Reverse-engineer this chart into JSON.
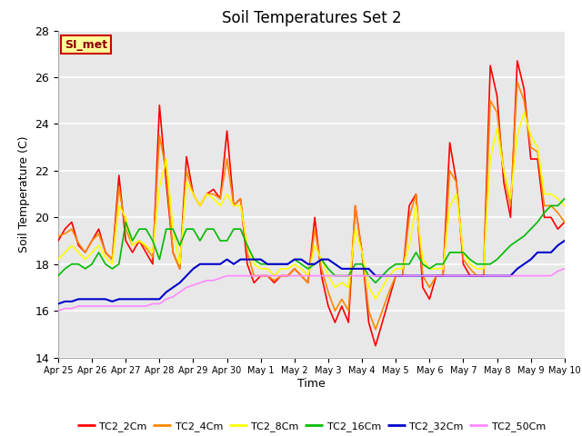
{
  "title": "Soil Temperatures Set 2",
  "xlabel": "Time",
  "ylabel": "Soil Temperature (C)",
  "ylim": [
    14,
    28
  ],
  "yticks": [
    14,
    16,
    18,
    20,
    22,
    24,
    26,
    28
  ],
  "annotation_text": "SI_met",
  "annotation_bg": "#ffff99",
  "annotation_border": "#cc0000",
  "legend_labels": [
    "TC2_2Cm",
    "TC2_4Cm",
    "TC2_8Cm",
    "TC2_16Cm",
    "TC2_32Cm",
    "TC2_50Cm"
  ],
  "line_colors": [
    "#ff0000",
    "#ff8800",
    "#ffff00",
    "#00bb00",
    "#0000cc",
    "#ff88ff"
  ],
  "line_widths": [
    1.2,
    1.2,
    1.2,
    1.2,
    1.5,
    1.2
  ],
  "x_tick_labels": [
    "Apr 25",
    "Apr 26",
    "Apr 27",
    "Apr 28",
    "Apr 29",
    "Apr 30",
    "May 1",
    "May 2",
    "May 3",
    "May 4",
    "May 5",
    "May 6",
    "May 7",
    "May 8",
    "May 9",
    "May 10"
  ],
  "TC2_2Cm": [
    19.0,
    19.5,
    19.8,
    18.8,
    18.5,
    19.0,
    19.5,
    18.5,
    18.2,
    21.8,
    19.0,
    18.5,
    19.0,
    18.5,
    18.0,
    24.8,
    21.5,
    18.5,
    17.8,
    22.6,
    21.0,
    20.5,
    21.0,
    21.2,
    20.8,
    23.7,
    20.5,
    20.8,
    18.0,
    17.2,
    17.5,
    17.5,
    17.2,
    17.5,
    17.5,
    17.8,
    17.5,
    17.2,
    20.0,
    17.5,
    16.2,
    15.5,
    16.2,
    15.5,
    20.5,
    18.5,
    15.5,
    14.5,
    15.5,
    16.5,
    17.5,
    17.5,
    20.5,
    21.0,
    17.0,
    16.5,
    17.5,
    17.5,
    23.2,
    21.5,
    18.0,
    17.5,
    17.5,
    17.5,
    26.5,
    25.2,
    21.5,
    20.0,
    26.7,
    25.5,
    22.5,
    22.5,
    20.0,
    20.0,
    19.5,
    19.8
  ],
  "TC2_4Cm": [
    19.2,
    19.3,
    19.5,
    18.9,
    18.5,
    19.0,
    19.3,
    18.5,
    18.2,
    21.3,
    19.5,
    18.8,
    19.0,
    18.7,
    18.3,
    23.5,
    22.0,
    18.5,
    17.8,
    22.0,
    21.0,
    20.5,
    21.0,
    21.0,
    20.8,
    22.5,
    20.5,
    20.8,
    18.5,
    17.5,
    17.5,
    17.5,
    17.3,
    17.5,
    17.5,
    17.8,
    17.5,
    17.2,
    19.5,
    17.8,
    16.8,
    16.0,
    16.5,
    16.0,
    20.5,
    18.5,
    16.0,
    15.2,
    16.0,
    16.8,
    17.5,
    17.5,
    20.0,
    21.0,
    17.5,
    17.0,
    17.5,
    17.5,
    22.0,
    21.5,
    18.2,
    17.8,
    17.5,
    17.5,
    25.0,
    24.5,
    22.0,
    20.5,
    25.8,
    25.0,
    23.0,
    22.8,
    20.5,
    20.5,
    20.2,
    19.8
  ],
  "TC2_8Cm": [
    18.2,
    18.5,
    18.8,
    18.5,
    18.2,
    18.5,
    18.8,
    18.3,
    18.0,
    20.5,
    20.0,
    18.8,
    19.0,
    18.8,
    18.5,
    21.3,
    22.5,
    19.5,
    18.0,
    21.5,
    21.0,
    20.5,
    21.0,
    20.8,
    20.5,
    21.0,
    20.5,
    20.5,
    18.8,
    18.0,
    17.8,
    17.8,
    17.5,
    17.8,
    17.8,
    18.0,
    17.8,
    17.5,
    18.8,
    18.2,
    17.5,
    17.0,
    17.2,
    17.0,
    19.5,
    18.5,
    17.0,
    16.5,
    17.0,
    17.5,
    17.8,
    17.8,
    18.8,
    20.5,
    18.2,
    17.8,
    17.8,
    17.8,
    20.5,
    21.0,
    18.5,
    18.0,
    17.8,
    17.8,
    22.5,
    23.8,
    22.0,
    20.8,
    23.5,
    24.5,
    23.5,
    23.0,
    21.0,
    21.0,
    20.8,
    20.5
  ],
  "TC2_16Cm": [
    17.5,
    17.8,
    18.0,
    18.0,
    17.8,
    18.0,
    18.5,
    18.0,
    17.8,
    18.0,
    19.8,
    19.0,
    19.5,
    19.5,
    19.0,
    18.2,
    19.5,
    19.5,
    18.8,
    19.5,
    19.5,
    19.0,
    19.5,
    19.5,
    19.0,
    19.0,
    19.5,
    19.5,
    18.8,
    18.2,
    18.0,
    18.0,
    18.0,
    18.0,
    18.0,
    18.2,
    18.0,
    17.8,
    18.0,
    18.2,
    17.8,
    17.5,
    17.5,
    17.5,
    18.0,
    18.0,
    17.5,
    17.2,
    17.5,
    17.8,
    18.0,
    18.0,
    18.0,
    18.5,
    18.0,
    17.8,
    18.0,
    18.0,
    18.5,
    18.5,
    18.5,
    18.2,
    18.0,
    18.0,
    18.0,
    18.2,
    18.5,
    18.8,
    19.0,
    19.2,
    19.5,
    19.8,
    20.2,
    20.5,
    20.5,
    20.8
  ],
  "TC2_32Cm": [
    16.3,
    16.4,
    16.4,
    16.5,
    16.5,
    16.5,
    16.5,
    16.5,
    16.4,
    16.5,
    16.5,
    16.5,
    16.5,
    16.5,
    16.5,
    16.5,
    16.8,
    17.0,
    17.2,
    17.5,
    17.8,
    18.0,
    18.0,
    18.0,
    18.0,
    18.2,
    18.0,
    18.2,
    18.2,
    18.2,
    18.2,
    18.0,
    18.0,
    18.0,
    18.0,
    18.2,
    18.2,
    18.0,
    18.0,
    18.2,
    18.2,
    18.0,
    17.8,
    17.8,
    17.8,
    17.8,
    17.8,
    17.5,
    17.5,
    17.5,
    17.5,
    17.5,
    17.5,
    17.5,
    17.5,
    17.5,
    17.5,
    17.5,
    17.5,
    17.5,
    17.5,
    17.5,
    17.5,
    17.5,
    17.5,
    17.5,
    17.5,
    17.5,
    17.8,
    18.0,
    18.2,
    18.5,
    18.5,
    18.5,
    18.8,
    19.0
  ],
  "TC2_50Cm": [
    16.0,
    16.1,
    16.1,
    16.2,
    16.2,
    16.2,
    16.2,
    16.2,
    16.2,
    16.2,
    16.2,
    16.2,
    16.2,
    16.2,
    16.3,
    16.3,
    16.5,
    16.6,
    16.8,
    17.0,
    17.1,
    17.2,
    17.3,
    17.3,
    17.4,
    17.5,
    17.5,
    17.5,
    17.5,
    17.5,
    17.5,
    17.5,
    17.5,
    17.5,
    17.5,
    17.5,
    17.5,
    17.5,
    17.5,
    17.5,
    17.5,
    17.5,
    17.5,
    17.5,
    17.5,
    17.5,
    17.5,
    17.5,
    17.5,
    17.5,
    17.5,
    17.5,
    17.5,
    17.5,
    17.5,
    17.5,
    17.5,
    17.5,
    17.5,
    17.5,
    17.5,
    17.5,
    17.5,
    17.5,
    17.5,
    17.5,
    17.5,
    17.5,
    17.5,
    17.5,
    17.5,
    17.5,
    17.5,
    17.5,
    17.7,
    17.8
  ]
}
